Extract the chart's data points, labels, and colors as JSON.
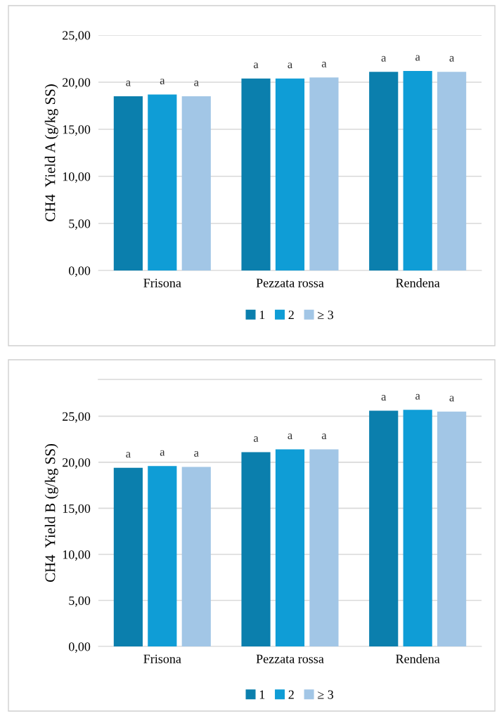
{
  "chart_data": [
    {
      "type": "bar",
      "ylabel": "CH4  Yield A (g/kg SS)",
      "categories": [
        "Frisona",
        "Pezzata rossa",
        "Rendena"
      ],
      "series": [
        {
          "name": "1",
          "color": "#0b7fad",
          "values": [
            18.5,
            20.4,
            21.1
          ],
          "value_labels": [
            "a",
            "a",
            "a"
          ]
        },
        {
          "name": "2",
          "color": "#0f9dd6",
          "values": [
            18.7,
            20.4,
            21.2
          ],
          "value_labels": [
            "a",
            "a",
            "a"
          ]
        },
        {
          "name": "≥ 3",
          "color": "#a2c6e6",
          "values": [
            18.5,
            20.5,
            21.1
          ],
          "value_labels": [
            "a",
            "a",
            "a"
          ]
        }
      ],
      "ylim": [
        0,
        25
      ],
      "yticks": [
        {
          "value": 0,
          "label": "0,00"
        },
        {
          "value": 5,
          "label": "5,00"
        },
        {
          "value": 10,
          "label": "10,00"
        },
        {
          "value": 15,
          "label": "15,00"
        },
        {
          "value": 20,
          "label": "20,00"
        },
        {
          "value": 25,
          "label": "25,00"
        }
      ],
      "grid": "y",
      "legend": "bottom"
    },
    {
      "type": "bar",
      "ylabel": "CH4  Yield B (g/kg SS)",
      "categories": [
        "Frisona",
        "Pezzata rossa",
        "Rendena"
      ],
      "series": [
        {
          "name": "1",
          "color": "#0b7fad",
          "values": [
            19.4,
            21.1,
            25.6
          ],
          "value_labels": [
            "a",
            "a",
            "a"
          ]
        },
        {
          "name": "2",
          "color": "#0f9dd6",
          "values": [
            19.6,
            21.4,
            25.7
          ],
          "value_labels": [
            "a",
            "a",
            "a"
          ]
        },
        {
          "name": "≥ 3",
          "color": "#a2c6e6",
          "values": [
            19.5,
            21.4,
            25.5
          ],
          "value_labels": [
            "a",
            "a",
            "a"
          ]
        }
      ],
      "ylim": [
        0,
        29
      ],
      "yticks": [
        {
          "value": 0,
          "label": "0,00"
        },
        {
          "value": 5,
          "label": "5,00"
        },
        {
          "value": 10,
          "label": "10,00"
        },
        {
          "value": 15,
          "label": "15,00"
        },
        {
          "value": 20,
          "label": "20,00"
        },
        {
          "value": 25,
          "label": "25,00"
        }
      ],
      "grid": "y",
      "legend": "bottom"
    }
  ]
}
